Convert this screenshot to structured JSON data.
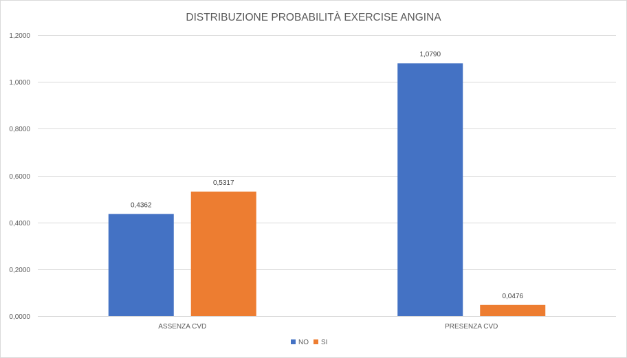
{
  "chart_data": {
    "type": "bar",
    "title": "DISTRIBUZIONE PROBABILITÀ EXERCISE ANGINA",
    "xlabel": "",
    "ylabel": "",
    "categories": [
      "ASSENZA CVD",
      "PRESENZA CVD"
    ],
    "series": [
      {
        "name": "NO",
        "color": "#4472C4",
        "values": [
          0.4362,
          1.079
        ],
        "labels": [
          "0,4362",
          "1,0790"
        ]
      },
      {
        "name": "SI",
        "color": "#ED7D31",
        "values": [
          0.5317,
          0.0476
        ],
        "labels": [
          "0,5317",
          "0,0476"
        ]
      }
    ],
    "ylim": [
      0,
      1.2
    ],
    "yticks": [
      0,
      0.2,
      0.4,
      0.6,
      0.8,
      1.0,
      1.2
    ],
    "ytick_labels": [
      "0,0000",
      "0,2000",
      "0,4000",
      "0,6000",
      "0,8000",
      "1,0000",
      "1,2000"
    ],
    "grid": true,
    "legend_position": "bottom"
  }
}
